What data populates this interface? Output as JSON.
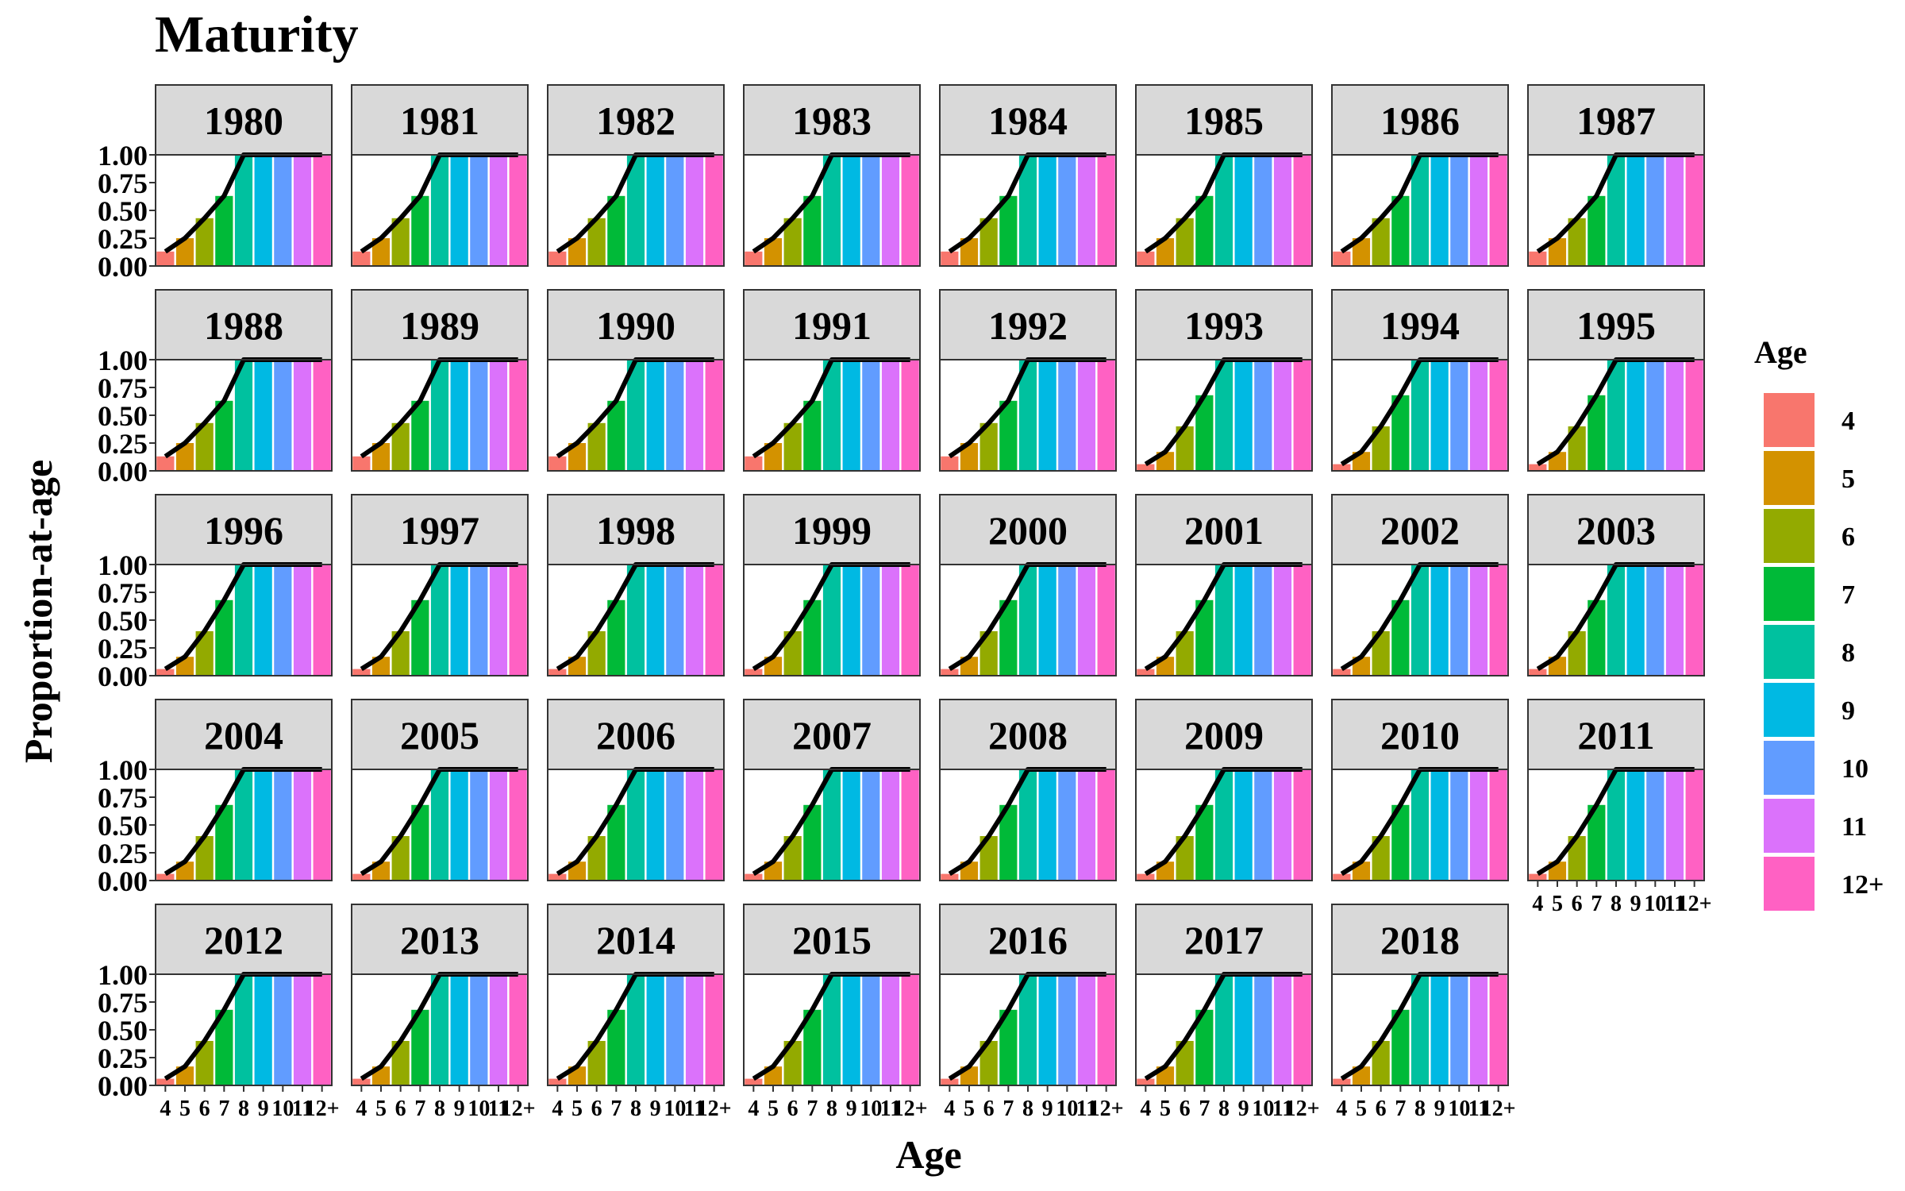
{
  "chart_data": {
    "type": "bar",
    "title": "Maturity",
    "xlabel": "Age",
    "ylabel": "Proportion-at-age",
    "ylim": [
      0,
      1.0
    ],
    "yticks": [
      "0.00",
      "0.25",
      "0.50",
      "0.75",
      "1.00"
    ],
    "categories": [
      "4",
      "5",
      "6",
      "7",
      "8",
      "9",
      "10",
      "11",
      "12+"
    ],
    "colors": [
      "#F8766D",
      "#D39200",
      "#93AA00",
      "#00BA38",
      "#00C19F",
      "#00B9E3",
      "#619CFF",
      "#DB72FB",
      "#FF61C3"
    ],
    "legend": {
      "title": "Age",
      "position": "right",
      "entries": [
        "4",
        "5",
        "6",
        "7",
        "8",
        "9",
        "10",
        "11",
        "12+"
      ]
    },
    "panels": [
      {
        "year": "1980",
        "values": [
          0.13,
          0.25,
          0.43,
          0.63,
          1.0,
          1.0,
          1.0,
          1.0,
          1.0
        ]
      },
      {
        "year": "1981",
        "values": [
          0.13,
          0.25,
          0.43,
          0.63,
          1.0,
          1.0,
          1.0,
          1.0,
          1.0
        ]
      },
      {
        "year": "1982",
        "values": [
          0.13,
          0.25,
          0.43,
          0.63,
          1.0,
          1.0,
          1.0,
          1.0,
          1.0
        ]
      },
      {
        "year": "1983",
        "values": [
          0.13,
          0.25,
          0.43,
          0.63,
          1.0,
          1.0,
          1.0,
          1.0,
          1.0
        ]
      },
      {
        "year": "1984",
        "values": [
          0.13,
          0.25,
          0.43,
          0.63,
          1.0,
          1.0,
          1.0,
          1.0,
          1.0
        ]
      },
      {
        "year": "1985",
        "values": [
          0.13,
          0.25,
          0.43,
          0.63,
          1.0,
          1.0,
          1.0,
          1.0,
          1.0
        ]
      },
      {
        "year": "1986",
        "values": [
          0.13,
          0.25,
          0.43,
          0.63,
          1.0,
          1.0,
          1.0,
          1.0,
          1.0
        ]
      },
      {
        "year": "1987",
        "values": [
          0.13,
          0.25,
          0.43,
          0.63,
          1.0,
          1.0,
          1.0,
          1.0,
          1.0
        ]
      },
      {
        "year": "1988",
        "values": [
          0.13,
          0.25,
          0.43,
          0.63,
          1.0,
          1.0,
          1.0,
          1.0,
          1.0
        ]
      },
      {
        "year": "1989",
        "values": [
          0.13,
          0.25,
          0.43,
          0.63,
          1.0,
          1.0,
          1.0,
          1.0,
          1.0
        ]
      },
      {
        "year": "1990",
        "values": [
          0.13,
          0.25,
          0.43,
          0.63,
          1.0,
          1.0,
          1.0,
          1.0,
          1.0
        ]
      },
      {
        "year": "1991",
        "values": [
          0.13,
          0.25,
          0.43,
          0.63,
          1.0,
          1.0,
          1.0,
          1.0,
          1.0
        ]
      },
      {
        "year": "1992",
        "values": [
          0.13,
          0.25,
          0.43,
          0.63,
          1.0,
          1.0,
          1.0,
          1.0,
          1.0
        ]
      },
      {
        "year": "1993",
        "values": [
          0.06,
          0.17,
          0.4,
          0.68,
          1.0,
          1.0,
          1.0,
          1.0,
          1.0
        ]
      },
      {
        "year": "1994",
        "values": [
          0.06,
          0.17,
          0.4,
          0.68,
          1.0,
          1.0,
          1.0,
          1.0,
          1.0
        ]
      },
      {
        "year": "1995",
        "values": [
          0.06,
          0.17,
          0.4,
          0.68,
          1.0,
          1.0,
          1.0,
          1.0,
          1.0
        ]
      },
      {
        "year": "1996",
        "values": [
          0.06,
          0.17,
          0.4,
          0.68,
          1.0,
          1.0,
          1.0,
          1.0,
          1.0
        ]
      },
      {
        "year": "1997",
        "values": [
          0.06,
          0.17,
          0.4,
          0.68,
          1.0,
          1.0,
          1.0,
          1.0,
          1.0
        ]
      },
      {
        "year": "1998",
        "values": [
          0.06,
          0.17,
          0.4,
          0.68,
          1.0,
          1.0,
          1.0,
          1.0,
          1.0
        ]
      },
      {
        "year": "1999",
        "values": [
          0.06,
          0.17,
          0.4,
          0.68,
          1.0,
          1.0,
          1.0,
          1.0,
          1.0
        ]
      },
      {
        "year": "2000",
        "values": [
          0.06,
          0.17,
          0.4,
          0.68,
          1.0,
          1.0,
          1.0,
          1.0,
          1.0
        ]
      },
      {
        "year": "2001",
        "values": [
          0.06,
          0.17,
          0.4,
          0.68,
          1.0,
          1.0,
          1.0,
          1.0,
          1.0
        ]
      },
      {
        "year": "2002",
        "values": [
          0.06,
          0.17,
          0.4,
          0.68,
          1.0,
          1.0,
          1.0,
          1.0,
          1.0
        ]
      },
      {
        "year": "2003",
        "values": [
          0.06,
          0.17,
          0.4,
          0.68,
          1.0,
          1.0,
          1.0,
          1.0,
          1.0
        ]
      },
      {
        "year": "2004",
        "values": [
          0.06,
          0.17,
          0.4,
          0.68,
          1.0,
          1.0,
          1.0,
          1.0,
          1.0
        ]
      },
      {
        "year": "2005",
        "values": [
          0.06,
          0.17,
          0.4,
          0.68,
          1.0,
          1.0,
          1.0,
          1.0,
          1.0
        ]
      },
      {
        "year": "2006",
        "values": [
          0.06,
          0.17,
          0.4,
          0.68,
          1.0,
          1.0,
          1.0,
          1.0,
          1.0
        ]
      },
      {
        "year": "2007",
        "values": [
          0.06,
          0.17,
          0.4,
          0.68,
          1.0,
          1.0,
          1.0,
          1.0,
          1.0
        ]
      },
      {
        "year": "2008",
        "values": [
          0.06,
          0.17,
          0.4,
          0.68,
          1.0,
          1.0,
          1.0,
          1.0,
          1.0
        ]
      },
      {
        "year": "2009",
        "values": [
          0.06,
          0.17,
          0.4,
          0.68,
          1.0,
          1.0,
          1.0,
          1.0,
          1.0
        ]
      },
      {
        "year": "2010",
        "values": [
          0.06,
          0.17,
          0.4,
          0.68,
          1.0,
          1.0,
          1.0,
          1.0,
          1.0
        ]
      },
      {
        "year": "2011",
        "values": [
          0.06,
          0.17,
          0.4,
          0.68,
          1.0,
          1.0,
          1.0,
          1.0,
          1.0
        ]
      },
      {
        "year": "2012",
        "values": [
          0.06,
          0.17,
          0.4,
          0.68,
          1.0,
          1.0,
          1.0,
          1.0,
          1.0
        ]
      },
      {
        "year": "2013",
        "values": [
          0.06,
          0.17,
          0.4,
          0.68,
          1.0,
          1.0,
          1.0,
          1.0,
          1.0
        ]
      },
      {
        "year": "2014",
        "values": [
          0.06,
          0.17,
          0.4,
          0.68,
          1.0,
          1.0,
          1.0,
          1.0,
          1.0
        ]
      },
      {
        "year": "2015",
        "values": [
          0.06,
          0.17,
          0.4,
          0.68,
          1.0,
          1.0,
          1.0,
          1.0,
          1.0
        ]
      },
      {
        "year": "2016",
        "values": [
          0.06,
          0.17,
          0.4,
          0.68,
          1.0,
          1.0,
          1.0,
          1.0,
          1.0
        ]
      },
      {
        "year": "2017",
        "values": [
          0.06,
          0.17,
          0.4,
          0.68,
          1.0,
          1.0,
          1.0,
          1.0,
          1.0
        ]
      },
      {
        "year": "2018",
        "values": [
          0.06,
          0.17,
          0.4,
          0.68,
          1.0,
          1.0,
          1.0,
          1.0,
          1.0
        ]
      }
    ]
  }
}
